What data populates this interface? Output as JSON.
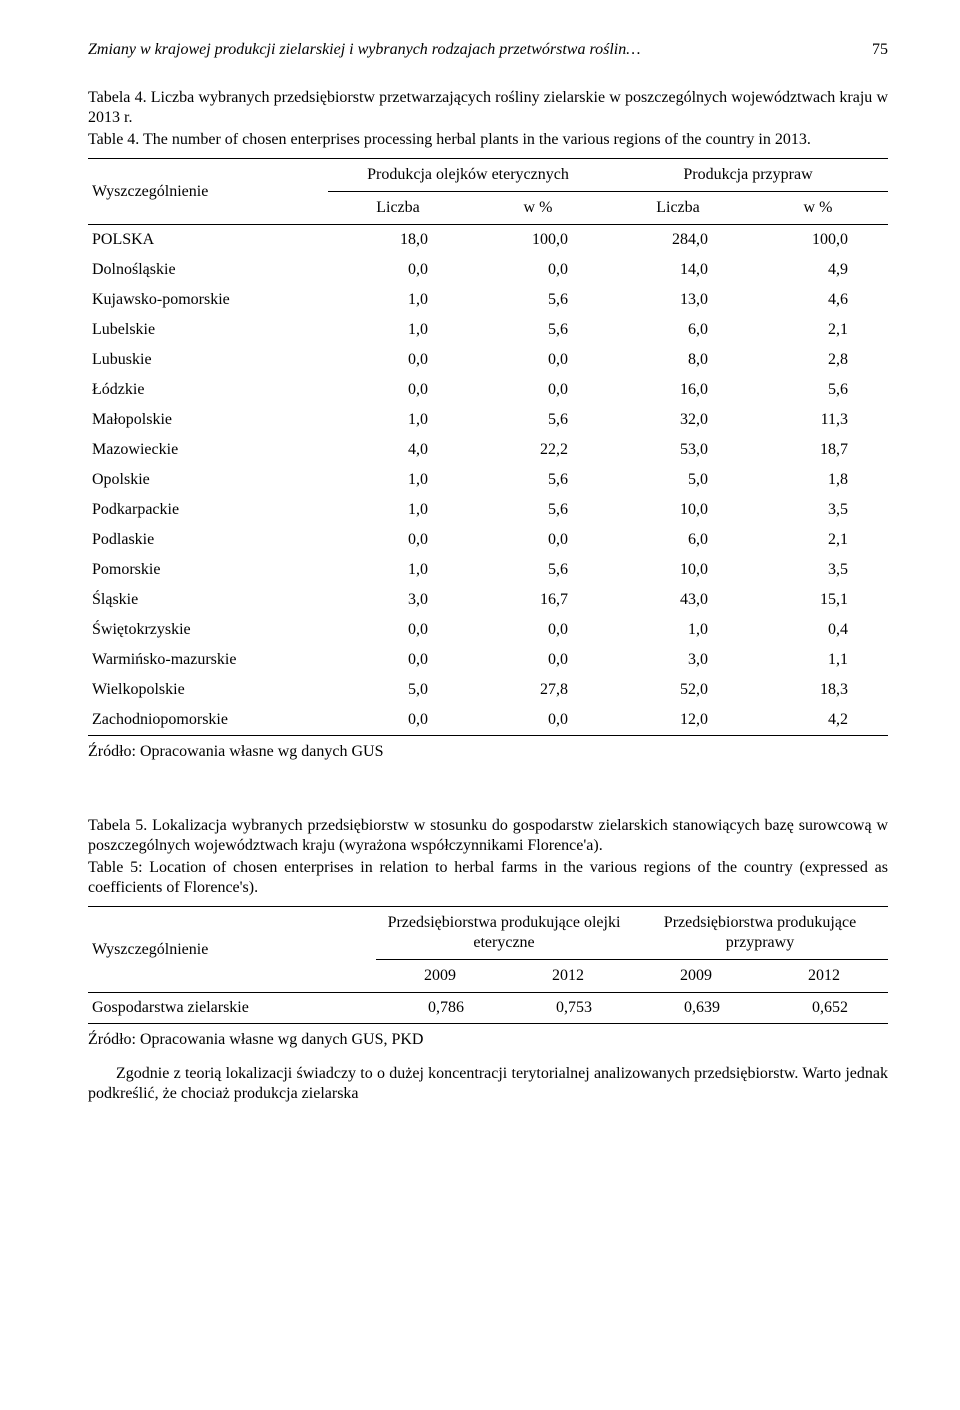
{
  "runningHead": {
    "title": "Zmiany w krajowej produkcji zielarskiej i wybranych rodzajach przetwórstwa roślin…",
    "pageNumber": "75"
  },
  "table4": {
    "caption_pl": "Tabela 4. Liczba wybranych przedsiębiorstw przetwarzających rośliny zielarskie w poszczególnych województwach kraju w 2013 r.",
    "caption_en": "Table 4. The number of chosen enterprises processing herbal plants in the various regions of the country in 2013.",
    "colGroup_left_label": "Wyszczególnienie",
    "group1": "Produkcja olejków eterycznych",
    "group2": "Produkcja przypraw",
    "sub_liczba": "Liczba",
    "sub_wpct": "w %",
    "rows": [
      {
        "label": "POLSKA",
        "a": "18,0",
        "b": "100,0",
        "c": "284,0",
        "d": "100,0"
      },
      {
        "label": "Dolnośląskie",
        "a": "0,0",
        "b": "0,0",
        "c": "14,0",
        "d": "4,9"
      },
      {
        "label": "Kujawsko-pomorskie",
        "a": "1,0",
        "b": "5,6",
        "c": "13,0",
        "d": "4,6"
      },
      {
        "label": "Lubelskie",
        "a": "1,0",
        "b": "5,6",
        "c": "6,0",
        "d": "2,1"
      },
      {
        "label": "Lubuskie",
        "a": "0,0",
        "b": "0,0",
        "c": "8,0",
        "d": "2,8"
      },
      {
        "label": "Łódzkie",
        "a": "0,0",
        "b": "0,0",
        "c": "16,0",
        "d": "5,6"
      },
      {
        "label": "Małopolskie",
        "a": "1,0",
        "b": "5,6",
        "c": "32,0",
        "d": "11,3"
      },
      {
        "label": "Mazowieckie",
        "a": "4,0",
        "b": "22,2",
        "c": "53,0",
        "d": "18,7"
      },
      {
        "label": "Opolskie",
        "a": "1,0",
        "b": "5,6",
        "c": "5,0",
        "d": "1,8"
      },
      {
        "label": "Podkarpackie",
        "a": "1,0",
        "b": "5,6",
        "c": "10,0",
        "d": "3,5"
      },
      {
        "label": "Podlaskie",
        "a": "0,0",
        "b": "0,0",
        "c": "6,0",
        "d": "2,1"
      },
      {
        "label": "Pomorskie",
        "a": "1,0",
        "b": "5,6",
        "c": "10,0",
        "d": "3,5"
      },
      {
        "label": "Śląskie",
        "a": "3,0",
        "b": "16,7",
        "c": "43,0",
        "d": "15,1"
      },
      {
        "label": "Świętokrzyskie",
        "a": "0,0",
        "b": "0,0",
        "c": "1,0",
        "d": "0,4"
      },
      {
        "label": "Warmińsko-mazurskie",
        "a": "0,0",
        "b": "0,0",
        "c": "3,0",
        "d": "1,1"
      },
      {
        "label": "Wielkopolskie",
        "a": "5,0",
        "b": "27,8",
        "c": "52,0",
        "d": "18,3"
      },
      {
        "label": "Zachodniopomorskie",
        "a": "0,0",
        "b": "0,0",
        "c": "12,0",
        "d": "4,2"
      }
    ],
    "source": "Źródło: Opracowania własne wg danych GUS"
  },
  "table5": {
    "caption_pl": "Tabela 5. Lokalizacja wybranych przedsiębiorstw w stosunku do gospodarstw zielarskich stanowiących bazę surowcową w poszczególnych województwach kraju (wyrażona współczynnikami Florence'a).",
    "caption_en": "Table 5: Location of chosen enterprises in relation to herbal farms in the various regions of the country (expressed as coefficients of Florence's).",
    "colGroup_left_label": "Wyszczególnienie",
    "group1": "Przedsiębiorstwa produkujące olejki eteryczne",
    "group2": "Przedsiębiorstwa produkujące przyprawy",
    "y2009": "2009",
    "y2012": "2012",
    "rows": [
      {
        "label": "Gospodarstwa zielarskie",
        "a": "0,786",
        "b": "0,753",
        "c": "0,639",
        "d": "0,652"
      }
    ],
    "source": "Źródło: Opracowania własne wg danych GUS, PKD"
  },
  "bodyText": "Zgodnie z teorią lokalizacji świadczy to o dużej koncentracji terytorialnej analizowanych przedsiębiorstw. Warto jednak podkreślić, że chociaż produkcja zielarska"
}
